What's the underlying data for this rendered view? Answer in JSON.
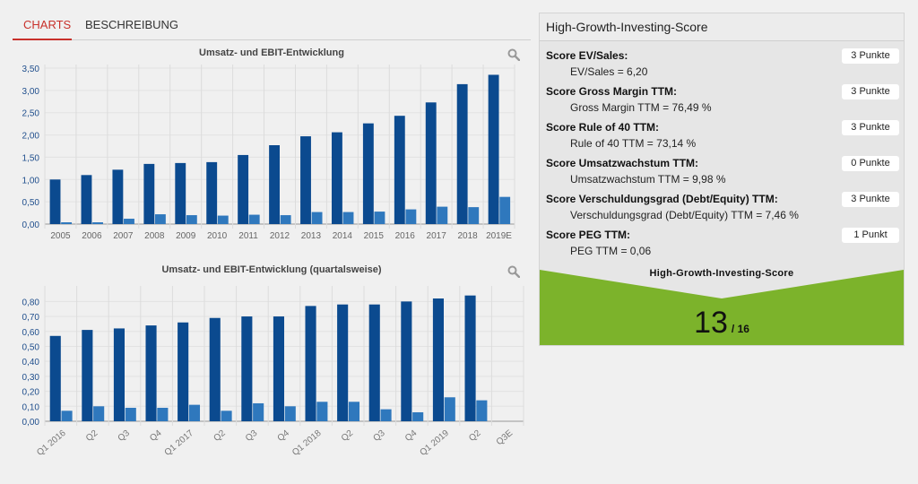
{
  "tabs": [
    {
      "label": "CHARTS",
      "active": true
    },
    {
      "label": "BESCHREIBUNG",
      "active": false
    }
  ],
  "icons": {
    "zoom": "magnifier-icon"
  },
  "colors": {
    "series_revenue": "#0b4a8f",
    "series_ebit": "#2f78bd",
    "accent": "#c8312b",
    "score_green": "#7cb32b"
  },
  "chart_data": [
    {
      "type": "bar",
      "title": "Umsatz- und EBIT-Entwicklung",
      "categories": [
        "2005",
        "2006",
        "2007",
        "2008",
        "2009",
        "2010",
        "2011",
        "2012",
        "2013",
        "2014",
        "2015",
        "2016",
        "2017",
        "2018",
        "2019E"
      ],
      "series": [
        {
          "values": [
            1.0,
            1.1,
            1.22,
            1.35,
            1.37,
            1.39,
            1.55,
            1.77,
            1.97,
            2.06,
            2.26,
            2.43,
            2.73,
            3.14,
            3.35
          ]
        },
        {
          "values": [
            0.04,
            0.04,
            0.12,
            0.22,
            0.2,
            0.19,
            0.21,
            0.2,
            0.27,
            0.27,
            0.28,
            0.33,
            0.39,
            0.38,
            0.61
          ]
        }
      ],
      "yticks": [
        "0,00",
        "0,50",
        "1,00",
        "1,50",
        "2,00",
        "2,50",
        "3,00",
        "3,50"
      ],
      "ylim": [
        0,
        3.5
      ]
    },
    {
      "type": "bar",
      "title": "Umsatz- und EBIT-Entwicklung (quartalsweise)",
      "categories": [
        "Q1 2016",
        "Q2",
        "Q3",
        "Q4",
        "Q1 2017",
        "Q2",
        "Q3",
        "Q4",
        "Q1 2018",
        "Q2",
        "Q3",
        "Q4",
        "Q1 2019",
        "Q2",
        "Q3E"
      ],
      "series": [
        {
          "values": [
            0.57,
            0.61,
            0.62,
            0.64,
            0.66,
            0.69,
            0.7,
            0.7,
            0.77,
            0.78,
            0.78,
            0.8,
            0.82,
            0.84,
            null
          ]
        },
        {
          "values": [
            0.07,
            0.1,
            0.09,
            0.09,
            0.11,
            0.07,
            0.12,
            0.1,
            0.13,
            0.13,
            0.08,
            0.06,
            0.16,
            0.14,
            null
          ]
        }
      ],
      "yticks": [
        "0,00",
        "0,10",
        "0,20",
        "0,30",
        "0,40",
        "0,50",
        "0,60",
        "0,70",
        "0,80"
      ],
      "ylim": [
        0,
        0.88
      ]
    }
  ],
  "score": {
    "title": "High-Growth-Investing-Score",
    "items": [
      {
        "label": "Score EV/Sales:",
        "value": "EV/Sales = 6,20",
        "points": "3 Punkte"
      },
      {
        "label": "Score Gross Margin TTM:",
        "value": "Gross Margin TTM = 76,49 %",
        "points": "3 Punkte"
      },
      {
        "label": "Score Rule of 40 TTM:",
        "value": "Rule of 40 TTM = 73,14 %",
        "points": "3 Punkte"
      },
      {
        "label": "Score Umsatzwachstum TTM:",
        "value": "Umsatzwachstum TTM = 9,98 %",
        "points": "0 Punkte"
      },
      {
        "label": "Score Verschuldungsgrad (Debt/Equity) TTM:",
        "value": "Verschuldungsgrad (Debt/Equity) TTM = 7,46 %",
        "points": "3 Punkte"
      },
      {
        "label": "Score PEG TTM:",
        "value": "PEG TTM = 0,06",
        "points": "1 Punkt"
      }
    ],
    "total_title": "High-Growth-Investing-Score",
    "total": "13",
    "total_of": "/ 16"
  }
}
